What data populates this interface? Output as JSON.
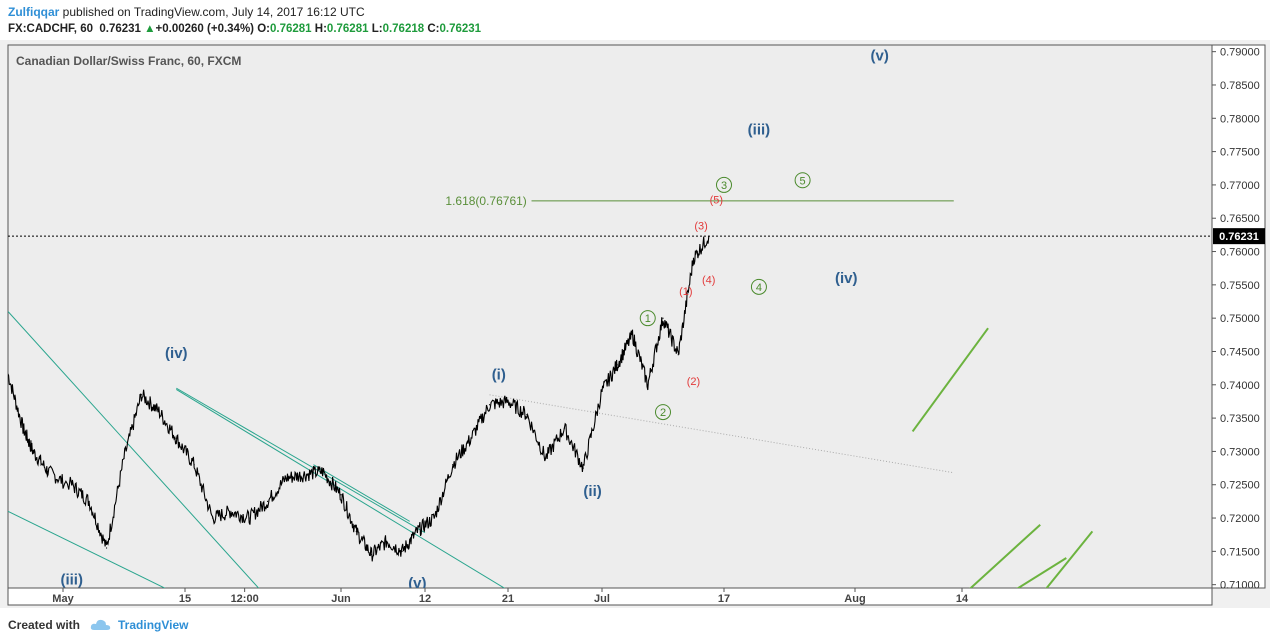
{
  "header": {
    "author": "Zulfiqqar",
    "published": "published on TradingView.com, July 14, 2017 16:12 UTC",
    "symbol": "FX:CADCHF, 60",
    "last": "0.76231",
    "change_arrow": "▲",
    "change": "+0.00260 (+0.34%)",
    "o_label": "O:",
    "o_val": "0.76281",
    "h_label": "H:",
    "h_val": "0.76281",
    "l_label": "L:",
    "l_val": "0.76218",
    "c_label": "C:",
    "c_val": "0.76231"
  },
  "footer": {
    "created_with": "Created with",
    "brand": "TradingView",
    "logo_icon": "tradingview-cloud-icon"
  },
  "colors": {
    "candles": "#000000",
    "blue_label": "#2f5f8f",
    "green_label": "#4a8a2c",
    "red_label": "#e23b3b",
    "teal_line": "#2aa58e",
    "green_line": "#6cb33f",
    "fib_line": "#5a8f3a",
    "up": "#1e9b3c"
  },
  "chart_data": {
    "type": "line",
    "title": "Canadian Dollar/Swiss Franc, 60, FXCM",
    "xlabel": "",
    "ylabel": "",
    "ylim": [
      0.7095,
      0.791
    ],
    "y_ticks": [
      "0.79000",
      "0.78500",
      "0.78000",
      "0.77500",
      "0.77000",
      "0.76500",
      "0.76000",
      "0.75500",
      "0.75000",
      "0.74500",
      "0.74000",
      "0.73500",
      "0.73000",
      "0.72500",
      "0.72000",
      "0.71500",
      "0.71000"
    ],
    "x_ticks": [
      "May",
      "15",
      "12:00",
      "Jun",
      "12",
      "21",
      "Jul",
      "17",
      "Aug",
      "14"
    ],
    "last_price_label": "0.76231",
    "series": [
      {
        "x": [
          "Apr 20",
          "Apr 23",
          "Apr 25",
          "Apr 28",
          "May 1",
          "May 3",
          "May 5",
          "May 7",
          "May 9",
          "May 11",
          "May 13",
          "May 15",
          "May 17",
          "May 19",
          "May 21",
          "May 23",
          "May 25",
          "May 27",
          "May 29",
          "May 31",
          "Jun 2",
          "Jun 4",
          "Jun 6",
          "Jun 8",
          "Jun 10",
          "Jun 12",
          "Jun 14",
          "Jun 16",
          "Jun 18",
          "Jun 20",
          "Jun 22",
          "Jun 24",
          "Jun 26",
          "Jun 28",
          "Jun 30",
          "Jul 2",
          "Jul 4",
          "Jul 6",
          "Jul 8",
          "Jul 10",
          "Jul 12",
          "Jul 14"
        ],
        "values": [
          0.7416,
          0.7335,
          0.73,
          0.727,
          0.725,
          0.7225,
          0.7155,
          0.729,
          0.7385,
          0.736,
          0.732,
          0.728,
          0.72,
          0.721,
          0.72,
          0.7225,
          0.726,
          0.7265,
          0.727,
          0.7235,
          0.718,
          0.7145,
          0.7165,
          0.715,
          0.718,
          0.72,
          0.728,
          0.732,
          0.737,
          0.7375,
          0.7355,
          0.729,
          0.7335,
          0.7275,
          0.739,
          0.743,
          0.7475,
          0.74,
          0.75,
          0.7445,
          0.759,
          0.7623
        ]
      }
    ],
    "annotations": {
      "blue_waves": [
        {
          "label": "(iv)",
          "x": "May 13",
          "y": 0.744
        },
        {
          "label": "(iii)",
          "x": "May 1",
          "y": 0.71
        },
        {
          "label": "(v)",
          "x": "Jun 10",
          "y": 0.7095
        },
        {
          "label": "(i)",
          "x": "Jun 19",
          "y": 0.7408
        },
        {
          "label": "(ii)",
          "x": "Jun 29",
          "y": 0.7233
        },
        {
          "label": "(iii)",
          "x": "Jul 20",
          "y": 0.7776
        },
        {
          "label": "(iv)",
          "x": "Jul 30",
          "y": 0.7553
        },
        {
          "label": "(v)",
          "x": "Aug 3",
          "y": 0.7887
        }
      ],
      "green_circled": [
        {
          "label": "1",
          "x": "Jul 6",
          "y": 0.75
        },
        {
          "label": "2",
          "x": "Jul 8",
          "y": 0.7359
        },
        {
          "label": "3",
          "x": "Jul 16",
          "y": 0.77
        },
        {
          "label": "4",
          "x": "Jul 20",
          "y": 0.7547
        },
        {
          "label": "5",
          "x": "Jul 25",
          "y": 0.7707
        }
      ],
      "red_waves": [
        {
          "label": "(1)",
          "x": "Jul 11",
          "y": 0.7535
        },
        {
          "label": "(2)",
          "x": "Jul 12",
          "y": 0.74
        },
        {
          "label": "(3)",
          "x": "Jul 13",
          "y": 0.7633
        },
        {
          "label": "(4)",
          "x": "Jul 14",
          "y": 0.7552
        },
        {
          "label": "(5)",
          "x": "Jul 15",
          "y": 0.7672
        }
      ],
      "fib_level": {
        "label": "1.618(0.76761)",
        "value": 0.76761
      }
    }
  }
}
